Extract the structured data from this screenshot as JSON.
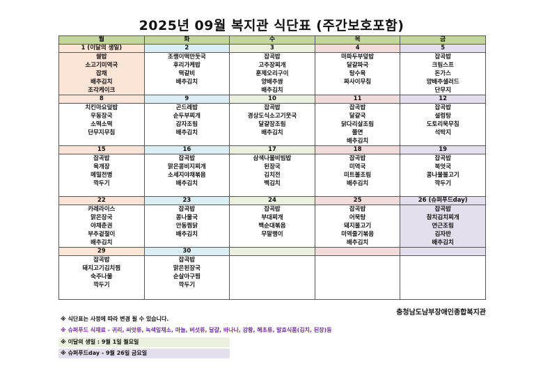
{
  "title": "2025년  09월  복지관  식단표  (주간보호포함)",
  "days": [
    "월",
    "화",
    "수",
    "목",
    "금"
  ],
  "colors": {
    "header": "#c4d79b",
    "mon": "#fce4d6",
    "tue": "#daeef3",
    "wed": "#ebf1de",
    "thu": "#f2dcdb",
    "fri": "#e4dfec",
    "superfood_note": "#7030a0"
  },
  "weeks": [
    [
      {
        "date": "1 (이달의 생일)",
        "menu": [
          "쌀밥",
          "소고기미역국",
          "잡채",
          "배추김치",
          "조각케이크"
        ]
      },
      {
        "date": "2",
        "menu": [
          "조랭이떡만둣국",
          "후리가케밥",
          "떡갈비",
          "배추김치"
        ]
      },
      {
        "date": "3",
        "menu": [
          "잡곡밥",
          "고추장찌개",
          "훈제오리구이",
          "양배추쌈",
          "배추김치"
        ]
      },
      {
        "date": "4",
        "menu": [
          "마파두부덮밥",
          "달걀파국",
          "탕수육",
          "짜사이무침"
        ]
      },
      {
        "date": "5",
        "menu": [
          "잡곡밥",
          "크림스프",
          "돈가스",
          "양배추샐러드",
          "단무지"
        ]
      }
    ],
    [
      {
        "date": "8",
        "menu": [
          "치킨마요덮밥",
          "우동장국",
          "소떡소떡",
          "단무지무침"
        ]
      },
      {
        "date": "9",
        "menu": [
          "곤드레밥",
          "순두부찌개",
          "감자조림",
          "배추김치"
        ]
      },
      {
        "date": "10",
        "menu": [
          "잡곡밥",
          "경상도식소고기뭇국",
          "달걀장조림",
          "배추김치"
        ]
      },
      {
        "date": "11",
        "menu": [
          "잡곡밥",
          "달걀국",
          "닭다리살조림",
          "쫄면",
          "배추김치"
        ]
      },
      {
        "date": "12",
        "menu": [
          "잡곡밥",
          "설렁탕",
          "도토리묵무침",
          "석박지"
        ]
      }
    ],
    [
      {
        "date": "15",
        "menu": [
          "잡곡밥",
          "육개장",
          "메밀전병",
          "깍두기"
        ]
      },
      {
        "date": "16",
        "menu": [
          "잡곡밥",
          "맑은콩비지찌개",
          "소세지야채볶음",
          "배추김치"
        ]
      },
      {
        "date": "17",
        "menu": [
          "삼색나물비빔밥",
          "된장국",
          "김치전",
          "백김치"
        ]
      },
      {
        "date": "18",
        "menu": [
          "잡곡밥",
          "미역국",
          "미트볼조림",
          "배추김치"
        ]
      },
      {
        "date": "19",
        "menu": [
          "잡곡밥",
          "북엇국",
          "콩나물불고기",
          "깍두기"
        ]
      }
    ],
    [
      {
        "date": "22",
        "menu": [
          "카레라이스",
          "맑은장국",
          "야채춘권",
          "부추겉절이",
          "배추김치"
        ]
      },
      {
        "date": "23",
        "menu": [
          "잡곡밥",
          "콩나물국",
          "안동찜닭",
          "배추김치"
        ]
      },
      {
        "date": "24",
        "menu": [
          "잡곡밥",
          "부대찌개",
          "백순대볶음",
          "무말랭이"
        ]
      },
      {
        "date": "25",
        "menu": [
          "잡곡밥",
          "어묵탕",
          "돼지불고기",
          "미역줄기볶음",
          "배추김치"
        ]
      },
      {
        "date": "26 (슈퍼푸드day)",
        "menu": [
          "잡곡밥",
          "참치김치찌개",
          "연근조림",
          "김자반",
          "배추김치"
        ]
      }
    ],
    [
      {
        "date": "29",
        "menu": [
          "잡곡밥",
          "돼지고기김치찜",
          "숙주나물",
          "깍두기"
        ]
      },
      {
        "date": "30",
        "menu": [
          "잡곡밥",
          "맑은된장국",
          "순살아구찜",
          "깍두기"
        ]
      },
      {
        "date": "",
        "menu": []
      },
      {
        "date": "",
        "menu": []
      },
      {
        "date": "",
        "menu": []
      }
    ]
  ],
  "organization": "충청남도남부장애인종합복지관",
  "notes": [
    "※ 식단표는 사정에 따라 변경 될 수 있습니다.",
    "※ 슈퍼푸드 식재료 - 귀리, 씨앗류, 녹색잎채소, 마늘, 버섯류, 달걀, 바나나, 강황, 해초류, 발효식품(김치, 된장)등",
    "※ 이달의 생일 : 9월 1일 월요일",
    "※ 슈퍼푸드day - 9월 26일 금요일"
  ]
}
